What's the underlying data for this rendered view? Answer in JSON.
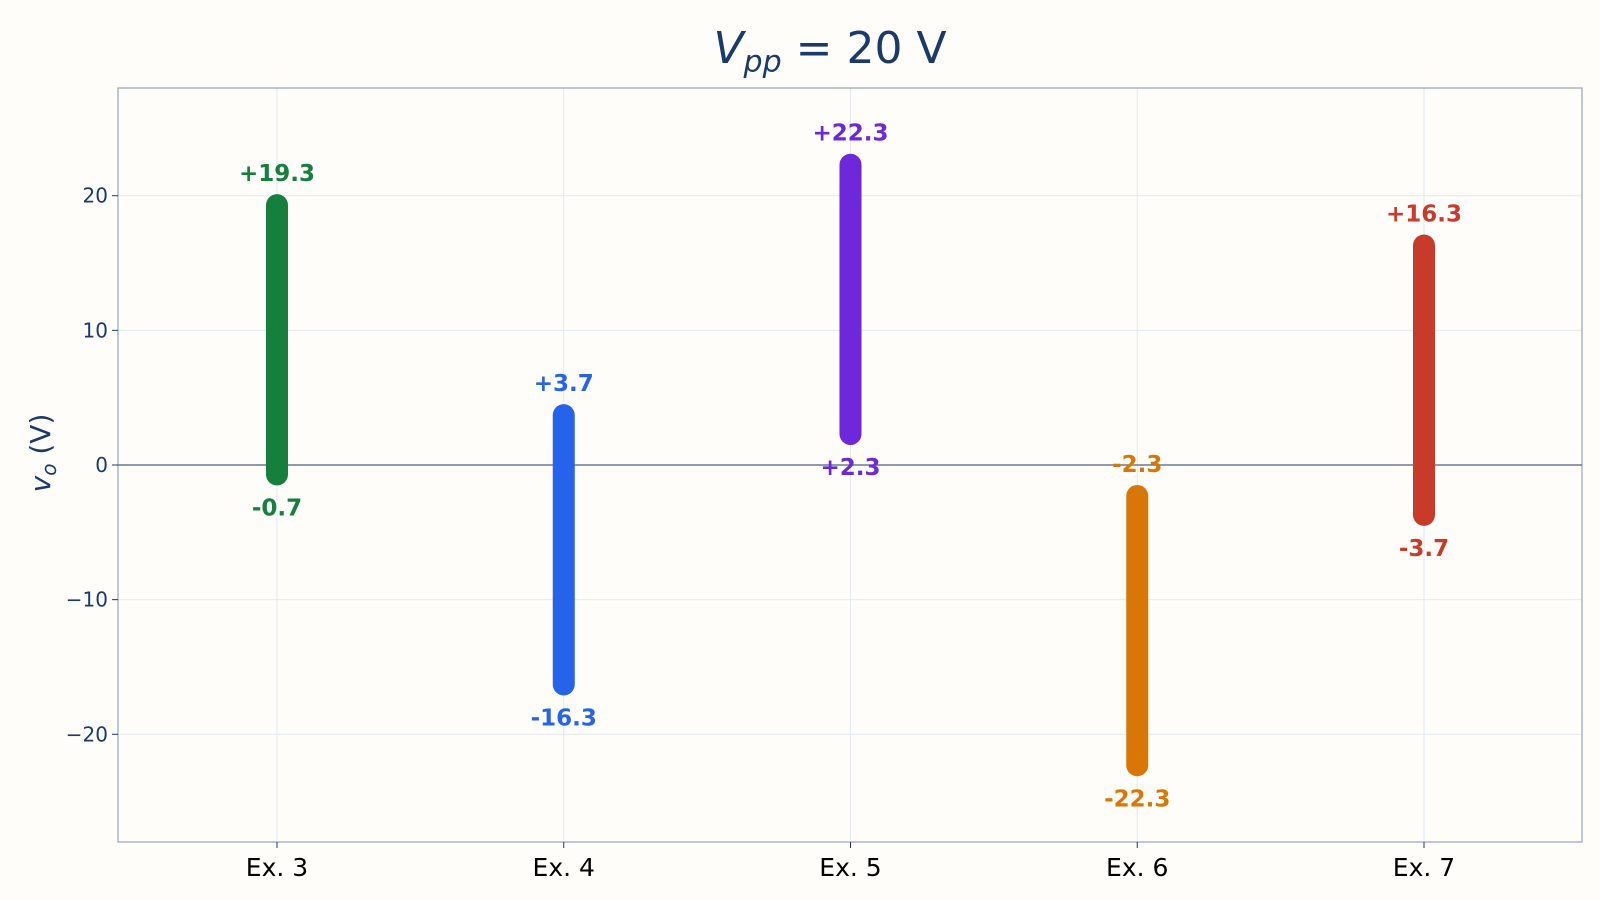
{
  "chart_data": {
    "type": "range-bar",
    "title_parts": {
      "main": "V",
      "sub": "pp",
      "rest": " = 20 V"
    },
    "ylabel_parts": {
      "main": "v",
      "sub": "o",
      "rest": " (V)"
    },
    "categories": [
      "Ex. 3",
      "Ex. 4",
      "Ex. 5",
      "Ex. 6",
      "Ex. 7"
    ],
    "series": [
      {
        "category": "Ex. 3",
        "min": -0.7,
        "max": 19.3,
        "min_label": "-0.7",
        "max_label": "+19.3",
        "color": "#15803d"
      },
      {
        "category": "Ex. 4",
        "min": -16.3,
        "max": 3.7,
        "min_label": "-16.3",
        "max_label": "+3.7",
        "color": "#2563eb"
      },
      {
        "category": "Ex. 5",
        "min": 2.3,
        "max": 22.3,
        "min_label": "+2.3",
        "max_label": "+22.3",
        "color": "#6d28d9"
      },
      {
        "category": "Ex. 6",
        "min": -22.3,
        "max": -2.3,
        "min_label": "-22.3",
        "max_label": "-2.3",
        "color": "#d97706"
      },
      {
        "category": "Ex. 7",
        "min": -3.7,
        "max": 16.3,
        "min_label": "-3.7",
        "max_label": "+16.3",
        "color": "#c83b2b"
      }
    ],
    "ylim": [
      -28,
      28
    ],
    "yticks": [
      20,
      10,
      0,
      -10,
      -20
    ],
    "ytick_labels": [
      "20",
      "10",
      "0",
      "−10",
      "−20"
    ],
    "grid": true,
    "zero_line": true,
    "colors": {
      "axis": "#1a3a6b",
      "frame": "#98a4bd",
      "grid": "#e3e9f2",
      "zero": "#6b7a93",
      "background": "#fefdf9"
    }
  }
}
